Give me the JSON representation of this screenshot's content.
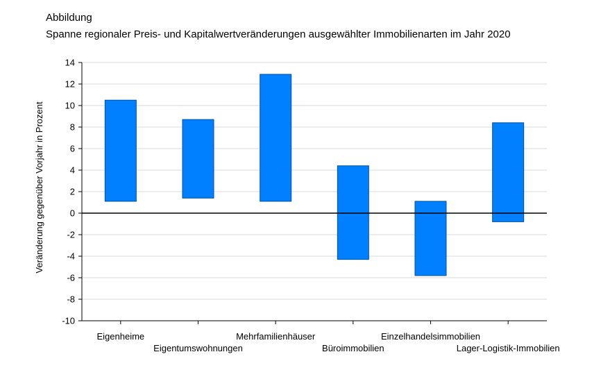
{
  "header": {
    "label": "Abbildung",
    "title": "Spanne regionaler Preis- und Kapitalwertveränderungen ausgewählter Immobilienarten im Jahr 2020"
  },
  "chart_data": {
    "type": "bar",
    "subtype": "floating-range",
    "title": "Spanne regionaler Preis- und Kapitalwertveränderungen ausgewählter Immobilienarten im Jahr 2020",
    "ylabel": "Veränderung gegenüber Vorjahr in Prozent",
    "xlabel": "",
    "ylim": [
      -10,
      14
    ],
    "yticks": [
      14,
      12,
      10,
      8,
      6,
      4,
      2,
      0,
      -2,
      -4,
      -6,
      -8,
      -10
    ],
    "grid": true,
    "bar_color": "#0080ff",
    "categories": [
      "Eigenheime",
      "Eigentumswohnungen",
      "Mehrfamilienhäuser",
      "Büroimmobilien",
      "Einzelhandelsimmobilien",
      "Lager-Logistik-Immobilien"
    ],
    "low": [
      1.1,
      1.4,
      1.1,
      -4.3,
      -5.8,
      -0.8
    ],
    "high": [
      10.5,
      8.7,
      12.9,
      4.4,
      1.1,
      8.4
    ]
  }
}
